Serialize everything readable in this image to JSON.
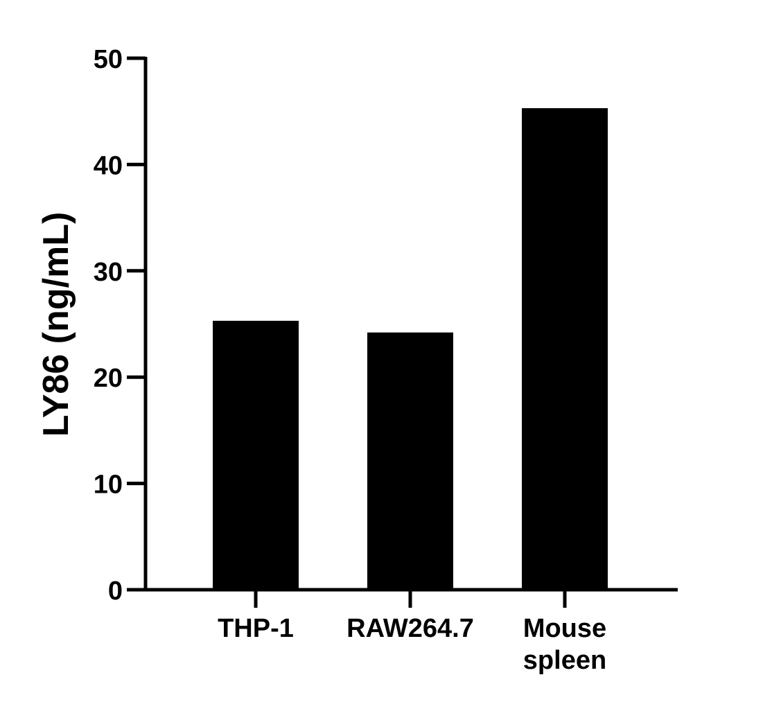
{
  "chart_data": {
    "type": "bar",
    "title": "",
    "xlabel": "",
    "ylabel": "LY86 (ng/mL)",
    "categories": [
      "THP-1",
      "RAW264.7",
      "Mouse spleen"
    ],
    "category_lines": [
      [
        "THP-1"
      ],
      [
        "RAW264.7"
      ],
      [
        "Mouse",
        "spleen"
      ]
    ],
    "values": [
      25.3,
      24.2,
      45.3
    ],
    "ylim": [
      0,
      50
    ],
    "yticks": [
      0,
      10,
      20,
      30,
      40,
      50
    ],
    "grid": false,
    "legend": "none",
    "bar_color": "#000000",
    "axis_color": "#000000"
  }
}
